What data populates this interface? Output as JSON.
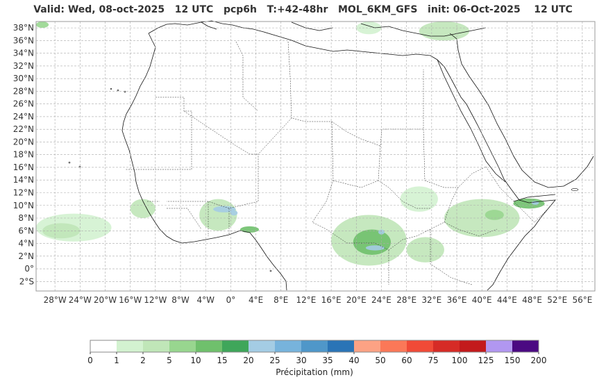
{
  "title": "Valid: Wed, 08-oct-2025   12 UTC   pcp6h   T:+42-48hr   MOL_6KM_GFS   init: 06-Oct-2025    12 UTC",
  "map": {
    "lon_range": [
      -31,
      58
    ],
    "lat_range": [
      -3.5,
      39
    ],
    "lat_ticks": [
      {
        "v": 38,
        "label": "38°N"
      },
      {
        "v": 36,
        "label": "36°N"
      },
      {
        "v": 34,
        "label": "34°N"
      },
      {
        "v": 32,
        "label": "32°N"
      },
      {
        "v": 30,
        "label": "30°N"
      },
      {
        "v": 28,
        "label": "28°N"
      },
      {
        "v": 26,
        "label": "26°N"
      },
      {
        "v": 24,
        "label": "24°N"
      },
      {
        "v": 22,
        "label": "22°N"
      },
      {
        "v": 20,
        "label": "20°N"
      },
      {
        "v": 18,
        "label": "18°N"
      },
      {
        "v": 16,
        "label": "16°N"
      },
      {
        "v": 14,
        "label": "14°N"
      },
      {
        "v": 12,
        "label": "12°N"
      },
      {
        "v": 10,
        "label": "10°N"
      },
      {
        "v": 8,
        "label": "8°N"
      },
      {
        "v": 6,
        "label": "6°N"
      },
      {
        "v": 4,
        "label": "4°N"
      },
      {
        "v": 2,
        "label": "2°N"
      },
      {
        "v": 0,
        "label": "0°"
      },
      {
        "v": -2,
        "label": "2°S"
      }
    ],
    "lon_ticks": [
      {
        "v": -28,
        "label": "28°W"
      },
      {
        "v": -24,
        "label": "24°W"
      },
      {
        "v": -20,
        "label": "20°W"
      },
      {
        "v": -16,
        "label": "16°W"
      },
      {
        "v": -12,
        "label": "12°W"
      },
      {
        "v": -8,
        "label": "8°W"
      },
      {
        "v": -4,
        "label": "4°W"
      },
      {
        "v": 0,
        "label": "0°"
      },
      {
        "v": 4,
        "label": "4°E"
      },
      {
        "v": 8,
        "label": "8°E"
      },
      {
        "v": 12,
        "label": "12°E"
      },
      {
        "v": 16,
        "label": "16°E"
      },
      {
        "v": 20,
        "label": "20°E"
      },
      {
        "v": 24,
        "label": "24°E"
      },
      {
        "v": 28,
        "label": "28°E"
      },
      {
        "v": 32,
        "label": "32°E"
      },
      {
        "v": 36,
        "label": "36°E"
      },
      {
        "v": 40,
        "label": "40°E"
      },
      {
        "v": 44,
        "label": "44°E"
      },
      {
        "v": 48,
        "label": "48°E"
      },
      {
        "v": 52,
        "label": "52°E"
      },
      {
        "v": 56,
        "label": "56°E"
      }
    ],
    "grid": true,
    "precip_areas": [
      {
        "name": "atlantic-band",
        "lon": -25,
        "lat": 6.5,
        "rx": 6,
        "ry": 2.2,
        "level": 1
      },
      {
        "name": "atlantic-band-core",
        "lon": -27,
        "lat": 6.0,
        "rx": 3,
        "ry": 1.2,
        "level": 2
      },
      {
        "name": "guinea-coast",
        "lon": -14,
        "lat": 9.5,
        "rx": 2,
        "ry": 1.5,
        "level": 2
      },
      {
        "name": "cote-divoire",
        "lon": -2,
        "lat": 8.5,
        "rx": 3,
        "ry": 2.5,
        "level": 2
      },
      {
        "name": "burkina-cell",
        "lon": -1,
        "lat": 9.4,
        "rx": 1.8,
        "ry": 0.5,
        "level": 6
      },
      {
        "name": "burkina-cell-2",
        "lon": 0.5,
        "lat": 8.8,
        "rx": 0.6,
        "ry": 0.4,
        "level": 6
      },
      {
        "name": "nigeria-coast",
        "lon": 3,
        "lat": 6.2,
        "rx": 1.5,
        "ry": 0.5,
        "level": 4
      },
      {
        "name": "central-africa",
        "lon": 22,
        "lat": 4.5,
        "rx": 6,
        "ry": 4,
        "level": 2
      },
      {
        "name": "car-core",
        "lon": 22.5,
        "lat": 4.2,
        "rx": 3,
        "ry": 2,
        "level": 4
      },
      {
        "name": "car-hot",
        "lon": 23,
        "lat": 3.3,
        "rx": 1.5,
        "ry": 0.4,
        "level": 6
      },
      {
        "name": "car-hot-2",
        "lon": 24,
        "lat": 5.8,
        "rx": 0.5,
        "ry": 0.4,
        "level": 6
      },
      {
        "name": "ethiopia",
        "lon": 40,
        "lat": 8,
        "rx": 6,
        "ry": 3,
        "level": 2
      },
      {
        "name": "ethiopia-core",
        "lon": 42,
        "lat": 8.5,
        "rx": 1.5,
        "ry": 0.8,
        "level": 3
      },
      {
        "name": "somaliland",
        "lon": 47.5,
        "lat": 10.3,
        "rx": 2.5,
        "ry": 0.8,
        "level": 4
      },
      {
        "name": "somaliland-hot",
        "lon": 48.5,
        "lat": 10.4,
        "rx": 0.6,
        "ry": 0.3,
        "level": 6
      },
      {
        "name": "sudan-south",
        "lon": 30,
        "lat": 11,
        "rx": 3,
        "ry": 2,
        "level": 1
      },
      {
        "name": "uganda",
        "lon": 31,
        "lat": 3,
        "rx": 3,
        "ry": 2,
        "level": 2
      },
      {
        "name": "turkey",
        "lon": 34,
        "lat": 37.5,
        "rx": 4,
        "ry": 1.5,
        "level": 2
      },
      {
        "name": "greece",
        "lon": 22,
        "lat": 38,
        "rx": 2,
        "ry": 1,
        "level": 1
      },
      {
        "name": "azores",
        "lon": -30,
        "lat": 38.5,
        "rx": 1,
        "ry": 0.5,
        "level": 3
      }
    ]
  },
  "colorbar": {
    "label": "Précipitation (mm)",
    "tick_labels": [
      "0",
      "1",
      "2",
      "5",
      "10",
      "15",
      "20",
      "25",
      "30",
      "35",
      "40",
      "50",
      "60",
      "75",
      "100",
      "125",
      "150",
      "200"
    ],
    "colors": [
      "#ffffff",
      "#d3f2d0",
      "#c0e6b8",
      "#98d68f",
      "#6fc06c",
      "#3fa65a",
      "#a4cce4",
      "#77b3dc",
      "#4f97c9",
      "#2a74b6",
      "#fca284",
      "#fb7858",
      "#f04a37",
      "#d62b26",
      "#c31a1c",
      "#b197f0",
      "#4b0a82"
    ]
  }
}
